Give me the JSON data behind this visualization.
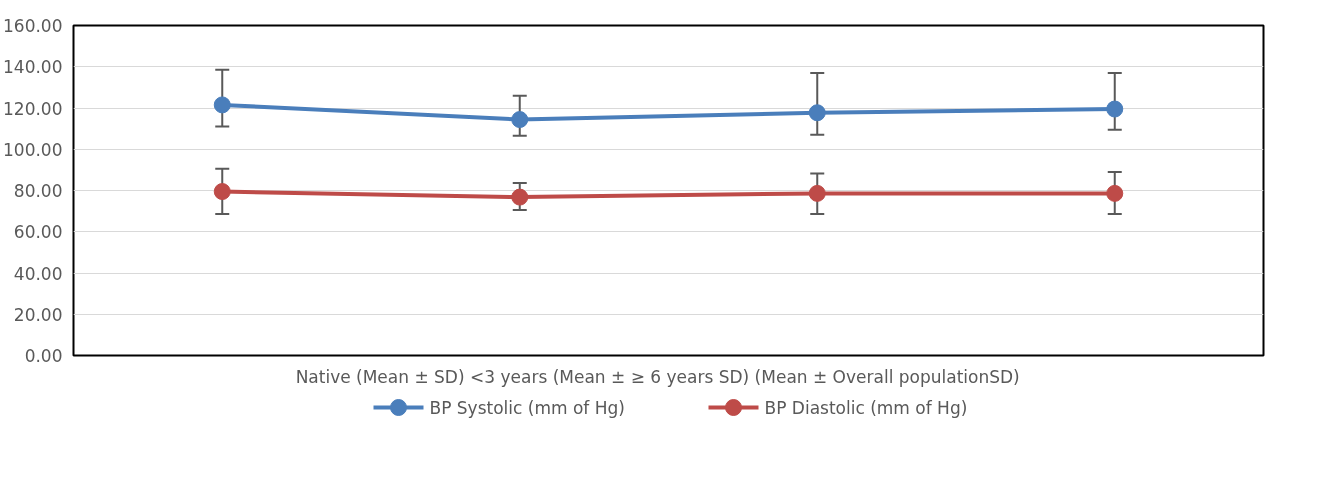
{
  "chart_data": {
    "type": "line",
    "categories": [
      null,
      null,
      null,
      null
    ],
    "xlabel": "Native (Mean ± SD) <3 years (Mean ±   ≥ 6 years SD)  (Mean ±  Overall populationSD)",
    "series": [
      {
        "name": "BP Systolic (mm of Hg)",
        "color": "#4a7ebb",
        "values": [
          121.5,
          114.4,
          117.7,
          119.5
        ],
        "errors": [
          [
            111,
            138.5
          ],
          [
            106.5,
            126
          ],
          [
            107,
            137
          ],
          [
            109.5,
            137
          ]
        ]
      },
      {
        "name": "BP Diastolic (mm of Hg)",
        "color": "#be4b48",
        "values": [
          79.5,
          76.8,
          78.6,
          78.6
        ],
        "errors": [
          [
            68.6,
            90.5
          ],
          [
            70.5,
            83.6
          ],
          [
            68.6,
            88.2
          ],
          [
            68.6,
            89
          ]
        ]
      }
    ],
    "ylim": [
      0,
      160
    ],
    "yticks": [
      {
        "value": 0,
        "label": "0.00"
      },
      {
        "value": 20,
        "label": "20.00"
      },
      {
        "value": 40,
        "label": "40.00"
      },
      {
        "value": 60,
        "label": "60.00"
      },
      {
        "value": 80,
        "label": "80.00"
      },
      {
        "value": 100,
        "label": "100.00"
      },
      {
        "value": 120,
        "label": "120.00"
      },
      {
        "value": 140,
        "label": "140.00"
      },
      {
        "value": 160,
        "label": "160.00"
      }
    ],
    "grid": "y",
    "legend": "bottom",
    "marker": "circle",
    "line_style": "solid"
  }
}
